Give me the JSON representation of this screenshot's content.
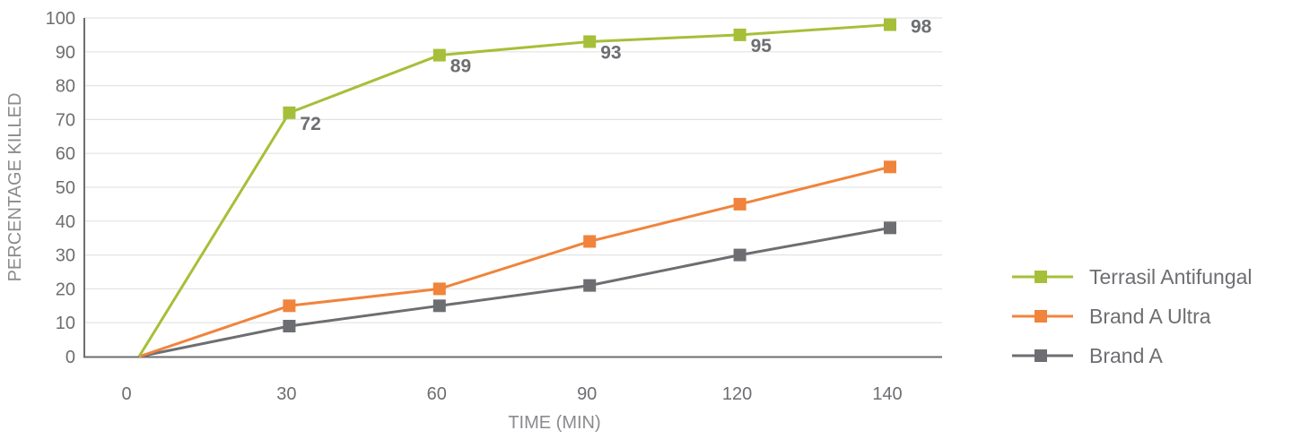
{
  "chart_data": {
    "type": "line",
    "title": "",
    "xlabel": "TIME (MIN)",
    "ylabel": "PERCENTAGE KILLED",
    "categories": [
      "0",
      "30",
      "60",
      "90",
      "120",
      "140"
    ],
    "ylim": [
      0,
      100
    ],
    "yticks": [
      "0",
      "10",
      "20",
      "30",
      "40",
      "50",
      "60",
      "70",
      "80",
      "90",
      "100"
    ],
    "grid": true,
    "legend_position": "right",
    "series": [
      {
        "name": "Terrasil Antifungal",
        "color": "#a6bf38",
        "values": [
          0,
          72,
          89,
          93,
          95,
          98
        ],
        "data_labels": [
          "",
          "72",
          "89",
          "93",
          "95",
          "98"
        ]
      },
      {
        "name": "Brand A Ultra",
        "color": "#f0843c",
        "values": [
          0,
          15,
          20,
          34,
          45,
          56
        ]
      },
      {
        "name": "Brand A",
        "color": "#6d6e71",
        "values": [
          0,
          9,
          15,
          21,
          30,
          38
        ]
      }
    ]
  }
}
